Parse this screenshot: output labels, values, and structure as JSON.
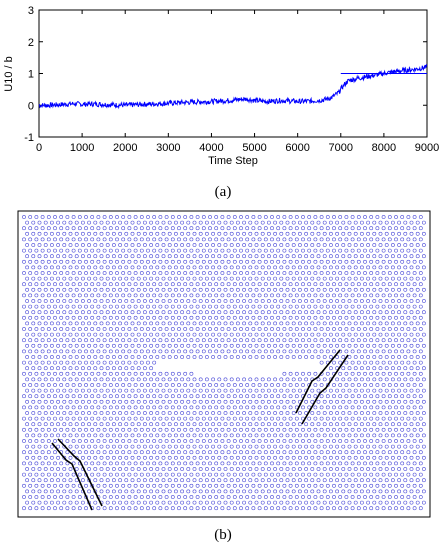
{
  "chart_data": [
    {
      "type": "line",
      "xlabel": "Time Step",
      "ylabel": "U10 / b",
      "xlim": [
        0,
        9000
      ],
      "ylim": [
        -1,
        3
      ],
      "xticks": [
        "0",
        "1000",
        "2000",
        "3000",
        "4000",
        "5000",
        "6000",
        "7000",
        "8000",
        "9000"
      ],
      "yticks": [
        "-1",
        "0",
        "1",
        "2",
        "3"
      ],
      "series": [
        {
          "color": "#0000ff",
          "x": [
            0,
            200,
            500,
            800,
            1000,
            1300,
            1600,
            2000,
            2400,
            2800,
            3200,
            3600,
            4000,
            4400,
            4800,
            5000,
            5300,
            5600,
            6000,
            6300,
            6600,
            6800,
            6950,
            7050,
            7150,
            7250,
            7400,
            7600,
            7800,
            8000,
            8200,
            8500,
            8800,
            9000
          ],
          "y": [
            0.0,
            0.0,
            0.02,
            0.05,
            0.03,
            0.04,
            0.02,
            0.0,
            0.03,
            0.05,
            0.08,
            0.1,
            0.12,
            0.15,
            0.2,
            0.15,
            0.12,
            0.15,
            0.12,
            0.13,
            0.17,
            0.25,
            0.4,
            0.6,
            0.75,
            0.8,
            0.85,
            0.9,
            0.95,
            1.0,
            1.05,
            1.1,
            1.15,
            1.2
          ]
        },
        {
          "color": "#0000ff",
          "x": [
            7000,
            9000
          ],
          "y": [
            1.0,
            1.0
          ]
        }
      ],
      "caption": "(a)"
    },
    {
      "type": "scatter",
      "marker": "hollow-circle",
      "point_color": "#4a4ad8",
      "line_color": "#000000",
      "caption": "(b)"
    }
  ]
}
